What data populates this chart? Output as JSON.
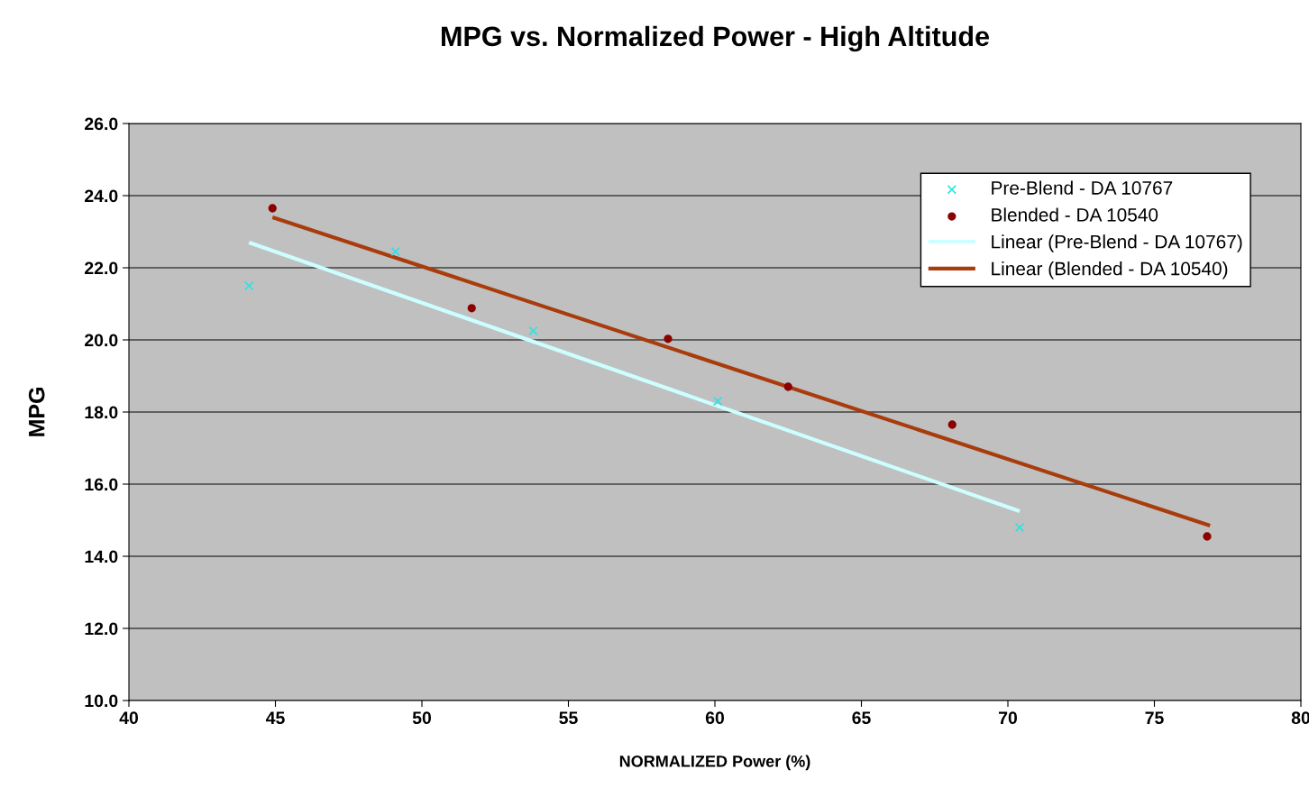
{
  "chart_data": {
    "type": "scatter",
    "title": "MPG vs. Normalized Power - High Altitude",
    "xlabel": "NORMALIZED Power (%)",
    "ylabel": "MPG",
    "xlim": [
      40,
      80
    ],
    "xticks": [
      40,
      45,
      50,
      55,
      60,
      65,
      70,
      75,
      80
    ],
    "ylim": [
      10,
      26
    ],
    "yticks": [
      {
        "value": 10,
        "label": "10.0"
      },
      {
        "value": 12,
        "label": "12.0"
      },
      {
        "value": 14,
        "label": "14.0"
      },
      {
        "value": 16,
        "label": "16.0"
      },
      {
        "value": 18,
        "label": "18.0"
      },
      {
        "value": 20,
        "label": "20.0"
      },
      {
        "value": 22,
        "label": "22.0"
      },
      {
        "value": 24,
        "label": "24.0"
      },
      {
        "value": 26,
        "label": "26.0"
      }
    ],
    "grid": "y",
    "legend": "top right",
    "series": [
      {
        "name": "Pre-Blend - DA 10767",
        "marker": "cross",
        "color": "#33e0e0",
        "x": [
          44.1,
          49.1,
          53.8,
          60.1,
          70.4
        ],
        "values": [
          21.5,
          22.45,
          20.25,
          18.3,
          14.8
        ]
      },
      {
        "name": "Blended - DA 10540",
        "marker": "circle",
        "color": "#8b0000",
        "x": [
          44.9,
          51.7,
          58.4,
          62.5,
          68.1,
          76.8
        ],
        "values": [
          23.65,
          20.88,
          20.03,
          18.7,
          17.65,
          14.55
        ]
      },
      {
        "name": "Linear (Pre-Blend - DA 10767)",
        "type": "line",
        "marker": "none",
        "color": "#ccffff",
        "x": [
          44.1,
          70.4
        ],
        "values": [
          22.7,
          15.25
        ]
      },
      {
        "name": "Linear (Blended - DA 10540)",
        "type": "line",
        "marker": "none",
        "color": "#a83c0c",
        "x": [
          44.9,
          76.9
        ],
        "values": [
          23.4,
          14.85
        ]
      }
    ]
  }
}
